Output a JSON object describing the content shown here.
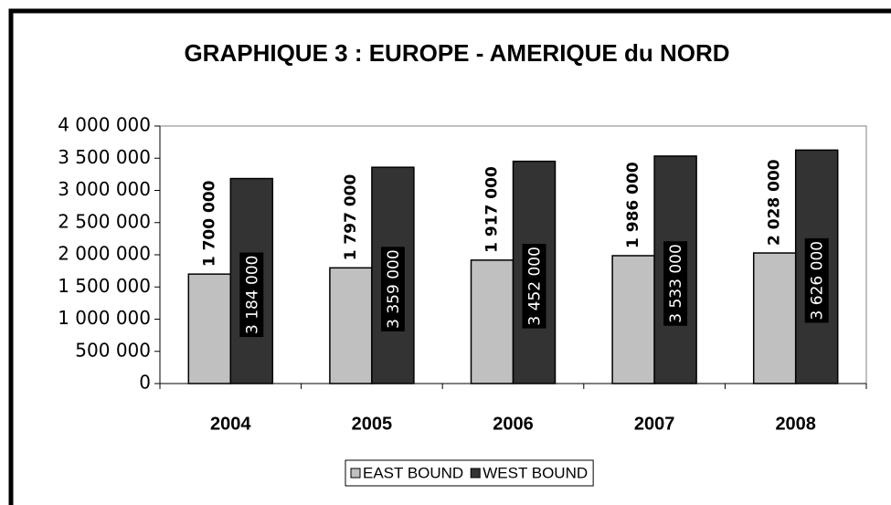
{
  "chart_data": {
    "type": "bar",
    "title": "GRAPHIQUE 3 : EUROPE - AMERIQUE du NORD",
    "categories": [
      "2004",
      "2005",
      "2006",
      "2007",
      "2008"
    ],
    "series": [
      {
        "name": "EAST BOUND",
        "color": "#c0c0c0",
        "values": [
          1700000,
          1797000,
          1917000,
          1986000,
          2028000
        ],
        "value_labels": [
          "1 700 000",
          "1 797 000",
          "1 917 000",
          "1 986 000",
          "2 028 000"
        ]
      },
      {
        "name": "WEST BOUND",
        "color": "#333333",
        "values": [
          3184000,
          3359000,
          3452000,
          3533000,
          3626000
        ],
        "value_labels": [
          "3 184 000",
          "3 359 000",
          "3 452 000",
          "3 533 000",
          "3 626 000"
        ]
      }
    ],
    "ylim": [
      0,
      4000000
    ],
    "yticks": [
      {
        "value": 0,
        "label": "0"
      },
      {
        "value": 500000,
        "label": "500 000"
      },
      {
        "value": 1000000,
        "label": "1 000 000"
      },
      {
        "value": 1500000,
        "label": "1 500 000"
      },
      {
        "value": 2000000,
        "label": "2 000 000"
      },
      {
        "value": 2500000,
        "label": "2 500 000"
      },
      {
        "value": 3000000,
        "label": "3 000 000"
      },
      {
        "value": 3500000,
        "label": "3 500 000"
      },
      {
        "value": 4000000,
        "label": "4 000 000"
      }
    ],
    "legend": "bottom"
  }
}
